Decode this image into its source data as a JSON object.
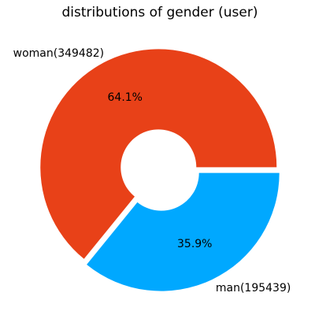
{
  "chart_data": {
    "type": "pie",
    "title": "distributions of gender (user)",
    "donut": true,
    "slices": [
      {
        "label": "woman(349482)",
        "value": 349482,
        "percent": "64.1%",
        "color": "#E84118"
      },
      {
        "label": "man(195439)",
        "value": 195439,
        "percent": "35.9%",
        "color": "#00A8FF"
      }
    ]
  }
}
